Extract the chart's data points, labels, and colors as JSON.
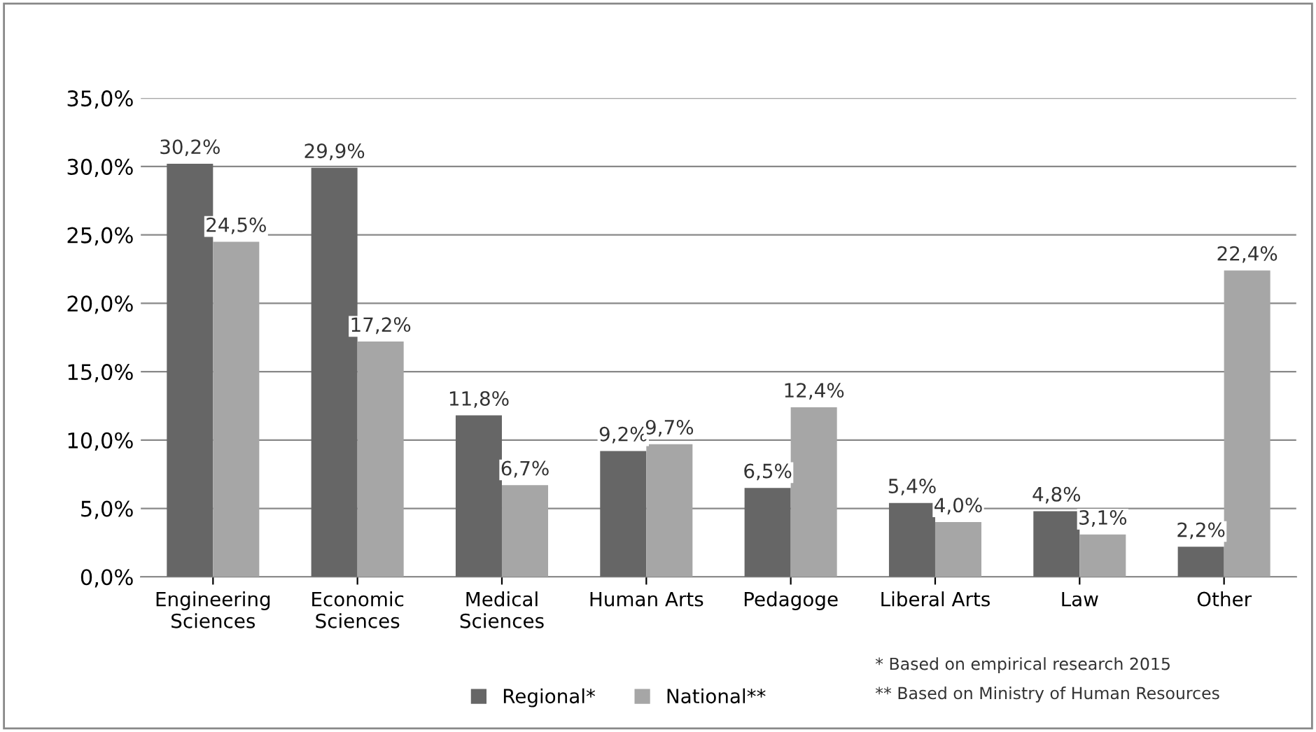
{
  "chart_data": {
    "type": "bar",
    "categories": [
      "Engineering\nSciences",
      "Economic\nSciences",
      "Medical\nSciences",
      "Human Arts",
      "Pedagoge",
      "Liberal Arts",
      "Law",
      "Other"
    ],
    "series": [
      {
        "name": "Regional*",
        "color": "#666666",
        "values": [
          30.2,
          29.9,
          11.8,
          9.2,
          6.5,
          5.4,
          4.8,
          2.2
        ],
        "value_labels": [
          "30,2%",
          "29,9%",
          "11,8%",
          "9,2%",
          "6,5%",
          "5,4%",
          "4,8%",
          "2,2%"
        ]
      },
      {
        "name": "National**",
        "color": "#a6a6a6",
        "values": [
          24.5,
          17.2,
          6.7,
          9.7,
          12.4,
          4.0,
          3.1,
          22.4
        ],
        "value_labels": [
          "24,5%",
          "17,2%",
          "6,7%",
          "9,7%",
          "12,4%",
          "4,0%",
          "3,1%",
          "22,4%"
        ]
      }
    ],
    "ylim": [
      0,
      35
    ],
    "yticks": [
      {
        "value": 0,
        "label": "0,0%"
      },
      {
        "value": 5,
        "label": "5,0%"
      },
      {
        "value": 10,
        "label": "10,0%"
      },
      {
        "value": 15,
        "label": "15,0%"
      },
      {
        "value": 20,
        "label": "20,0%"
      },
      {
        "value": 25,
        "label": "25,0%"
      },
      {
        "value": 30,
        "label": "30,0%"
      },
      {
        "value": 35,
        "label": "35,0%"
      }
    ],
    "grid": "y",
    "legend": "bottom",
    "annotations": [
      "* Based on empirical research 2015",
      "** Based on Ministry of Human Resources"
    ]
  }
}
